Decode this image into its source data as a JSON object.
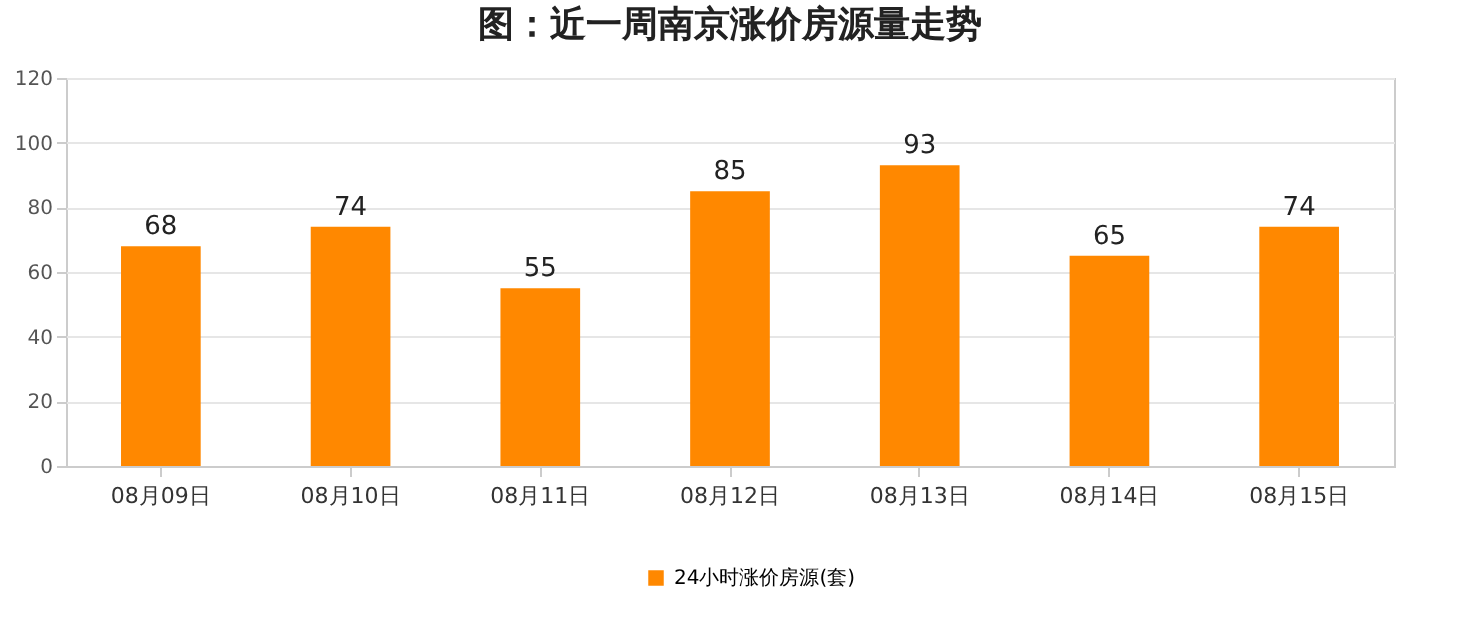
{
  "chart_data": {
    "type": "bar",
    "title": "图：近一周南京涨价房源量走势",
    "categories": [
      "08月09日",
      "08月10日",
      "08月11日",
      "08月12日",
      "08月13日",
      "08月14日",
      "08月15日"
    ],
    "series": [
      {
        "name": "24小时涨价房源(套)",
        "color": "#ff8800",
        "values": [
          68,
          74,
          55,
          85,
          93,
          65,
          74
        ]
      }
    ],
    "ylim": [
      0,
      120
    ],
    "yticks": [
      0,
      20,
      40,
      60,
      80,
      100,
      120
    ],
    "grid": "y",
    "legend": "bottom",
    "data_labels": true
  }
}
